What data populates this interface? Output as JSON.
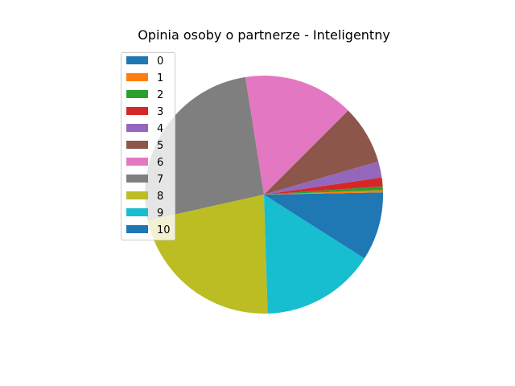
{
  "chart_data": {
    "type": "pie",
    "title": "Opinia osoby o partnerze - Inteligentny",
    "categories": [
      "0",
      "1",
      "2",
      "3",
      "4",
      "5",
      "6",
      "7",
      "8",
      "9",
      "10"
    ],
    "values": [
      0.3,
      0.3,
      0.5,
      1.2,
      2.2,
      8.0,
      15.0,
      26.0,
      22.0,
      15.5,
      9.0
    ],
    "colors": [
      "#1f77b4",
      "#ff7f0e",
      "#2ca02c",
      "#d62728",
      "#9467bd",
      "#8c564b",
      "#e377c2",
      "#7f7f7f",
      "#bcbd22",
      "#17becf",
      "#1f77b4"
    ],
    "start_angle_deg": 0,
    "direction": "counterclockwise",
    "legend": {
      "placement": "upper-left",
      "entries": [
        "0",
        "1",
        "2",
        "3",
        "4",
        "5",
        "6",
        "7",
        "8",
        "9",
        "10"
      ]
    }
  }
}
